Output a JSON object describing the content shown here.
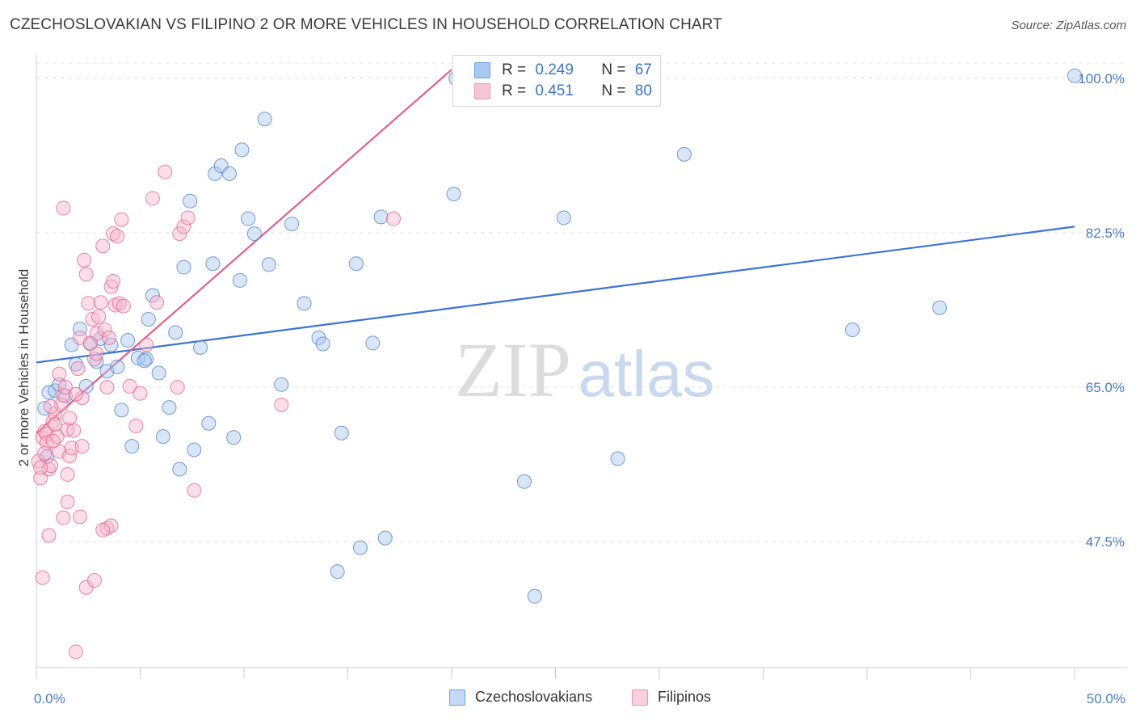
{
  "title": "CZECHOSLOVAKIAN VS FILIPINO 2 OR MORE VEHICLES IN HOUSEHOLD CORRELATION CHART",
  "source": "Source: ZipAtlas.com",
  "watermark": {
    "zip": "ZIP",
    "atlas": "atlas"
  },
  "legend": {
    "rows": [
      {
        "r_label": "R =",
        "r_value": "0.249",
        "n_label": "N =",
        "n_value": "67",
        "color": "#a9c8f0"
      },
      {
        "r_label": "R =",
        "r_value": "0.451",
        "n_label": "N =",
        "n_value": "80",
        "color": "#f7b6c9"
      }
    ]
  },
  "bottom_legend": [
    {
      "label": "Czechoslovakians",
      "color": "#a9c8f0"
    },
    {
      "label": "Filipinos",
      "color": "#f7b6c9"
    }
  ],
  "chart_data": {
    "type": "scatter",
    "title": "CZECHOSLOVAKIAN VS FILIPINO 2 OR MORE VEHICLES IN HOUSEHOLD CORRELATION CHART",
    "xlabel": "",
    "ylabel": "2 or more Vehicles in Household",
    "xlim": [
      0,
      50
    ],
    "ylim": [
      31,
      102
    ],
    "x_ticks": [
      "0.0%",
      "50.0%"
    ],
    "y_ticks": [
      {
        "value": 100,
        "label": "100.0%"
      },
      {
        "value": 82.5,
        "label": "82.5%"
      },
      {
        "value": 65,
        "label": "65.0%"
      },
      {
        "value": 47.5,
        "label": "47.5%"
      }
    ],
    "grid": true,
    "series": [
      {
        "name": "Czechoslovakians",
        "color": "#4a7cc7",
        "fill": "#a9c8f0",
        "trend": {
          "x0": 0,
          "y0": 67.8,
          "x1": 50,
          "y1": 83.2,
          "color": "#3a74d6"
        },
        "points": [
          [
            0.4,
            62.6
          ],
          [
            0.6,
            64.4
          ],
          [
            0.9,
            64.6
          ],
          [
            1.1,
            65.3
          ],
          [
            1.4,
            64.0
          ],
          [
            1.7,
            69.8
          ],
          [
            1.9,
            67.6
          ],
          [
            2.1,
            71.6
          ],
          [
            2.4,
            65.1
          ],
          [
            2.6,
            69.9
          ],
          [
            2.9,
            67.9
          ],
          [
            3.1,
            70.5
          ],
          [
            3.4,
            66.8
          ],
          [
            3.6,
            69.8
          ],
          [
            3.9,
            67.3
          ],
          [
            4.1,
            62.4
          ],
          [
            4.4,
            70.3
          ],
          [
            4.6,
            58.3
          ],
          [
            4.9,
            68.3
          ],
          [
            5.3,
            68.2
          ],
          [
            5.4,
            72.7
          ],
          [
            5.6,
            75.4
          ],
          [
            5.9,
            66.6
          ],
          [
            6.1,
            59.4
          ],
          [
            6.4,
            62.7
          ],
          [
            6.7,
            71.2
          ],
          [
            6.9,
            55.7
          ],
          [
            7.1,
            78.6
          ],
          [
            7.4,
            86.1
          ],
          [
            7.6,
            57.9
          ],
          [
            7.9,
            69.5
          ],
          [
            8.3,
            60.9
          ],
          [
            8.5,
            79.0
          ],
          [
            8.6,
            89.2
          ],
          [
            8.9,
            90.1
          ],
          [
            9.3,
            89.2
          ],
          [
            9.5,
            59.3
          ],
          [
            9.8,
            77.1
          ],
          [
            9.9,
            91.9
          ],
          [
            10.2,
            84.1
          ],
          [
            10.5,
            82.4
          ],
          [
            11.0,
            95.4
          ],
          [
            11.2,
            78.9
          ],
          [
            11.8,
            65.3
          ],
          [
            12.3,
            83.5
          ],
          [
            12.9,
            74.5
          ],
          [
            13.6,
            70.6
          ],
          [
            13.8,
            69.9
          ],
          [
            14.5,
            44.1
          ],
          [
            14.7,
            59.8
          ],
          [
            15.4,
            79.0
          ],
          [
            15.6,
            46.8
          ],
          [
            16.2,
            70.0
          ],
          [
            16.6,
            84.3
          ],
          [
            16.8,
            47.9
          ],
          [
            20.1,
            86.9
          ],
          [
            20.2,
            100.0
          ],
          [
            23.5,
            54.3
          ],
          [
            24.0,
            41.3
          ],
          [
            25.4,
            84.2
          ],
          [
            28.0,
            56.9
          ],
          [
            31.2,
            91.4
          ],
          [
            39.3,
            71.5
          ],
          [
            43.5,
            74.0
          ],
          [
            50.0,
            100.3
          ],
          [
            0.5,
            57.1
          ],
          [
            5.2,
            68.0
          ]
        ]
      },
      {
        "name": "Filipinos",
        "color": "#e35d8a",
        "fill": "#f7b6c9",
        "trend": {
          "x0": 0,
          "y0": 59.8,
          "x1": 20.0,
          "y1": 101.0,
          "color": "#e35d8a"
        },
        "points": [
          [
            0.1,
            56.6
          ],
          [
            0.2,
            54.7
          ],
          [
            0.3,
            59.3
          ],
          [
            0.4,
            60.0
          ],
          [
            0.5,
            59.7
          ],
          [
            0.5,
            58.7
          ],
          [
            0.6,
            55.7
          ],
          [
            0.7,
            56.1
          ],
          [
            0.8,
            61.1
          ],
          [
            0.9,
            62.0
          ],
          [
            1.0,
            59.4
          ],
          [
            1.1,
            57.7
          ],
          [
            1.2,
            63.0
          ],
          [
            1.3,
            64.1
          ],
          [
            1.4,
            65.0
          ],
          [
            1.5,
            60.2
          ],
          [
            1.6,
            57.2
          ],
          [
            1.7,
            58.1
          ],
          [
            1.8,
            60.1
          ],
          [
            2.0,
            67.1
          ],
          [
            2.1,
            70.6
          ],
          [
            2.2,
            58.3
          ],
          [
            2.3,
            79.4
          ],
          [
            2.4,
            77.8
          ],
          [
            2.5,
            74.5
          ],
          [
            2.6,
            70.0
          ],
          [
            2.7,
            72.7
          ],
          [
            2.8,
            68.2
          ],
          [
            2.9,
            71.1
          ],
          [
            3.0,
            73.0
          ],
          [
            3.1,
            74.6
          ],
          [
            3.2,
            81.0
          ],
          [
            3.3,
            71.5
          ],
          [
            3.4,
            65.0
          ],
          [
            3.5,
            70.6
          ],
          [
            3.6,
            76.4
          ],
          [
            3.7,
            82.4
          ],
          [
            3.8,
            74.3
          ],
          [
            3.9,
            82.1
          ],
          [
            4.0,
            74.5
          ],
          [
            4.1,
            84.0
          ],
          [
            4.2,
            74.2
          ],
          [
            4.5,
            65.1
          ],
          [
            4.8,
            60.6
          ],
          [
            5.0,
            64.3
          ],
          [
            5.3,
            69.8
          ],
          [
            5.6,
            86.4
          ],
          [
            5.8,
            74.6
          ],
          [
            6.2,
            89.4
          ],
          [
            6.8,
            65.0
          ],
          [
            6.9,
            82.4
          ],
          [
            7.1,
            83.2
          ],
          [
            7.3,
            84.2
          ],
          [
            7.6,
            53.3
          ],
          [
            1.3,
            85.3
          ],
          [
            1.5,
            55.1
          ],
          [
            1.5,
            52.0
          ],
          [
            1.3,
            50.2
          ],
          [
            2.1,
            50.3
          ],
          [
            3.4,
            49.0
          ],
          [
            3.6,
            49.3
          ],
          [
            3.2,
            48.8
          ],
          [
            0.6,
            48.2
          ],
          [
            0.3,
            43.4
          ],
          [
            2.4,
            42.3
          ],
          [
            2.8,
            43.1
          ],
          [
            1.9,
            35.0
          ],
          [
            17.2,
            84.1
          ],
          [
            11.8,
            63.0
          ],
          [
            2.2,
            63.8
          ],
          [
            0.9,
            60.8
          ],
          [
            1.6,
            61.5
          ],
          [
            0.7,
            62.8
          ],
          [
            1.9,
            64.2
          ],
          [
            1.1,
            66.5
          ],
          [
            2.9,
            68.8
          ],
          [
            0.4,
            57.5
          ],
          [
            0.2,
            55.9
          ],
          [
            0.8,
            58.9
          ],
          [
            3.7,
            77.0
          ]
        ]
      }
    ]
  }
}
